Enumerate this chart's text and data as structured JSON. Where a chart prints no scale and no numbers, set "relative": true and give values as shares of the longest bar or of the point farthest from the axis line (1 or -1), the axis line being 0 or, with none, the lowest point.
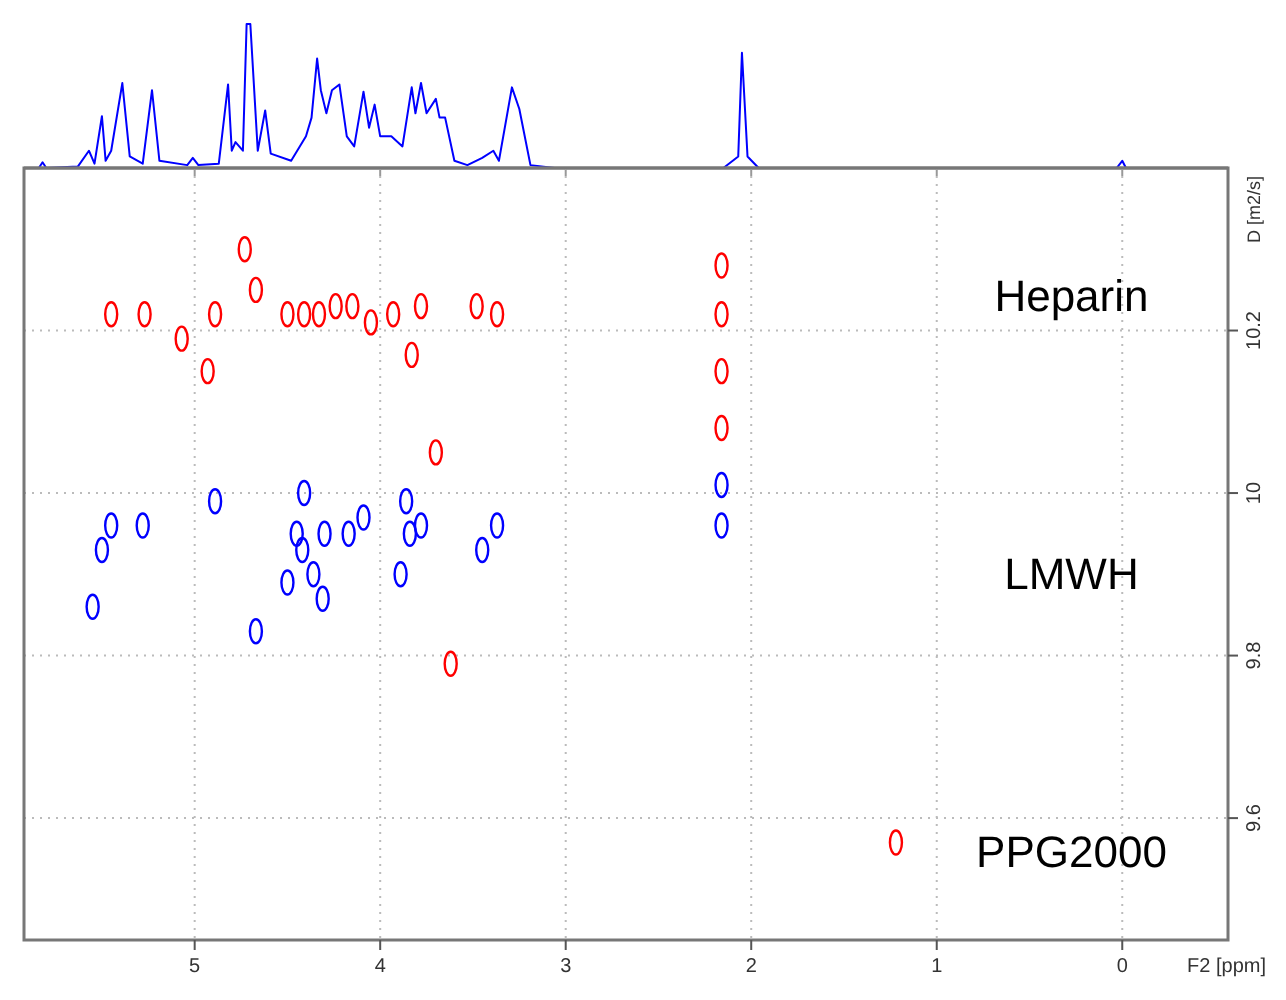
{
  "chart_data": [
    {
      "type": "line",
      "relative": true,
      "tick_labels": false,
      "xlim": [
        5.92,
        -0.57
      ],
      "xticks": [
        5,
        4,
        3,
        2,
        1,
        0
      ],
      "x": [
        5.92,
        5.84,
        5.82,
        5.8,
        5.63,
        5.57,
        5.54,
        5.5,
        5.48,
        5.45,
        5.39,
        5.35,
        5.28,
        5.23,
        5.19,
        5.04,
        5.01,
        4.98,
        4.87,
        4.82,
        4.8,
        4.78,
        4.74,
        4.72,
        4.7,
        4.66,
        4.62,
        4.59,
        4.48,
        4.4,
        4.37,
        4.34,
        4.32,
        4.29,
        4.26,
        4.22,
        4.18,
        4.14,
        4.09,
        4.06,
        4.03,
        4,
        3.94,
        3.88,
        3.83,
        3.81,
        3.78,
        3.75,
        3.7,
        3.68,
        3.65,
        3.6,
        3.53,
        3.45,
        3.39,
        3.36,
        3.29,
        3.25,
        3.19,
        3.06,
        2.15,
        2.07,
        2.05,
        2.02,
        1.96,
        0.03,
        0,
        -0.02,
        -0.57
      ],
      "series": [
        {
          "color": "#0000ff",
          "values": [
            0,
            0,
            0.04,
            0,
            0.01,
            0.12,
            0.03,
            0.36,
            0.05,
            0.12,
            0.59,
            0.08,
            0.03,
            0.54,
            0.05,
            0.02,
            0.07,
            0.02,
            0.03,
            0.58,
            0.12,
            0.18,
            0.12,
            1,
            1,
            0.12,
            0.4,
            0.1,
            0.05,
            0.22,
            0.35,
            0.76,
            0.54,
            0.38,
            0.54,
            0.58,
            0.22,
            0.15,
            0.53,
            0.28,
            0.44,
            0.22,
            0.22,
            0.15,
            0.56,
            0.38,
            0.59,
            0.38,
            0.48,
            0.35,
            0.35,
            0.05,
            0.02,
            0.07,
            0.12,
            0.05,
            0.56,
            0.41,
            0.02,
            0,
            0,
            0.08,
            0.8,
            0.08,
            0,
            0,
            0.05,
            0,
            0
          ]
        }
      ]
    },
    {
      "type": "scatter",
      "xlabel": "F2 [ppm]",
      "ylabel": "D [m2/s]",
      "grid": true,
      "marker": "circle",
      "xlim": [
        5.92,
        -0.57
      ],
      "xticks": [
        5,
        4,
        3,
        2,
        1,
        0
      ],
      "ylim": [
        9.45,
        10.4
      ],
      "yticks": [
        9.6,
        9.8,
        10.0,
        10.2
      ],
      "series": [
        {
          "color": "#ff0000",
          "x": [
            5.45,
            5.27,
            5.07,
            4.89,
            4.93,
            4.73,
            4.67,
            4.5,
            4.41,
            4.33,
            4.24,
            4.15,
            4.05,
            3.93,
            3.83,
            3.78,
            3.48,
            3.37,
            3.7,
            2.16,
            2.16,
            2.16,
            2.16,
            3.62,
            1.22
          ],
          "values": [
            10.22,
            10.22,
            10.19,
            10.22,
            10.15,
            10.3,
            10.25,
            10.22,
            10.22,
            10.22,
            10.23,
            10.23,
            10.21,
            10.22,
            10.17,
            10.23,
            10.23,
            10.22,
            10.05,
            10.28,
            10.22,
            10.15,
            10.08,
            9.79,
            9.57
          ]
        },
        {
          "color": "#0000ff",
          "x": [
            5.45,
            5.28,
            4.89,
            4.41,
            4.45,
            4.3,
            4.17,
            4.09,
            3.86,
            3.78,
            3.37,
            2.16,
            2.16,
            5.55,
            5.5,
            4.67,
            4.5,
            4.42,
            4.36,
            4.31,
            3.89,
            3.45,
            3.84
          ],
          "values": [
            9.96,
            9.96,
            9.99,
            10.0,
            9.95,
            9.95,
            9.95,
            9.97,
            9.99,
            9.96,
            9.96,
            10.01,
            9.96,
            9.86,
            9.93,
            9.83,
            9.89,
            9.93,
            9.9,
            9.87,
            9.9,
            9.93,
            9.95
          ]
        }
      ],
      "annotations": [
        "Heparin",
        "LMWH",
        "PPG2000"
      ]
    }
  ]
}
